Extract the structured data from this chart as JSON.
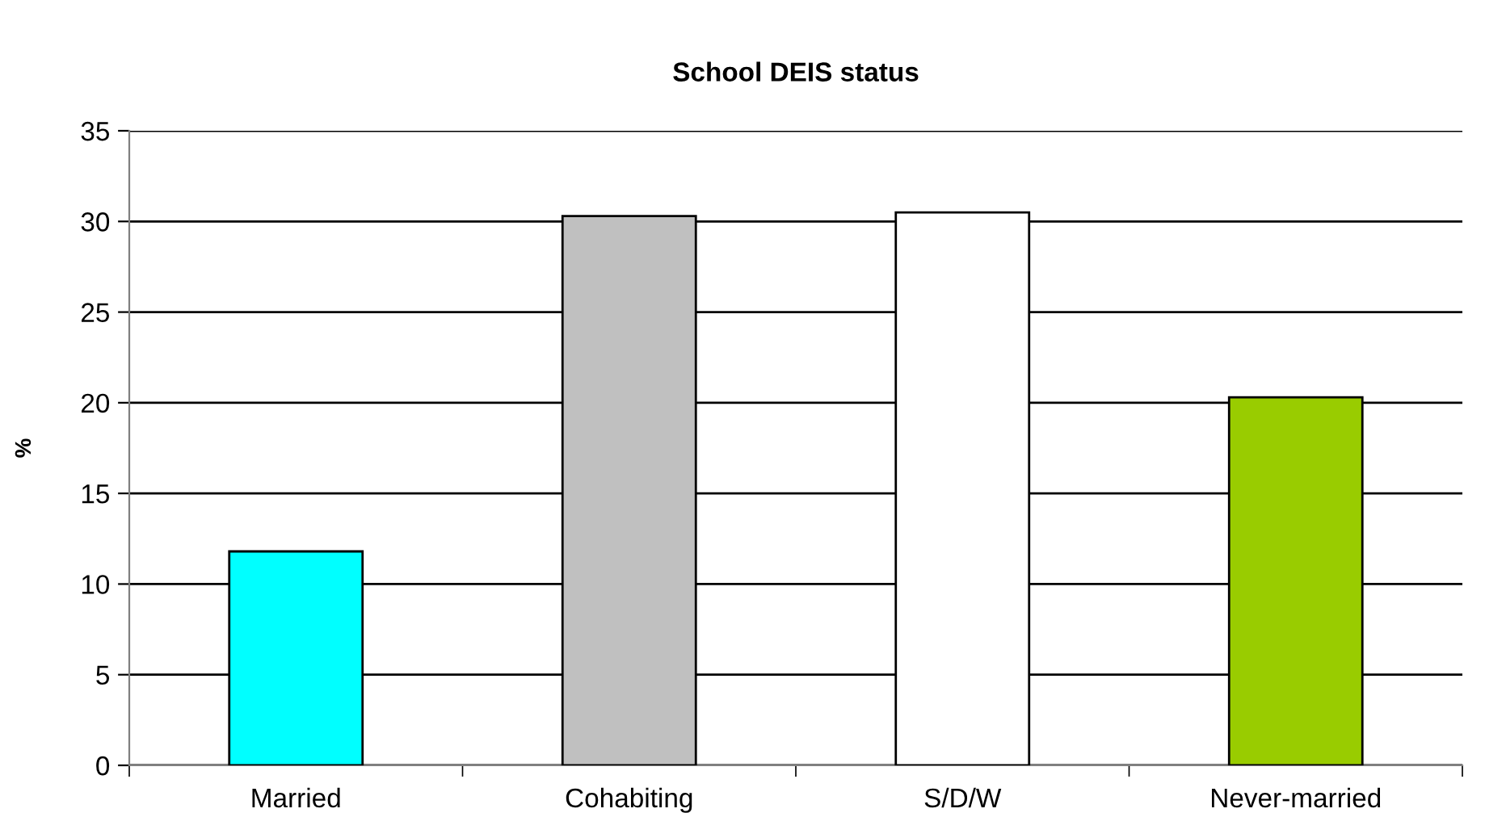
{
  "chart_data": {
    "type": "bar",
    "title": "School DEIS status",
    "ylabel": "%",
    "categories": [
      "Married",
      "Cohabiting",
      "S/D/W",
      "Never-married"
    ],
    "values": [
      11.8,
      30.3,
      30.5,
      20.3
    ],
    "colors": [
      "#00ffff",
      "#c0c0c0",
      "#ffffff",
      "#99cc00"
    ],
    "ylim": [
      0,
      35
    ],
    "yticks": [
      0,
      5,
      10,
      15,
      20,
      25,
      30,
      35
    ],
    "grid": "y",
    "legend": false
  }
}
